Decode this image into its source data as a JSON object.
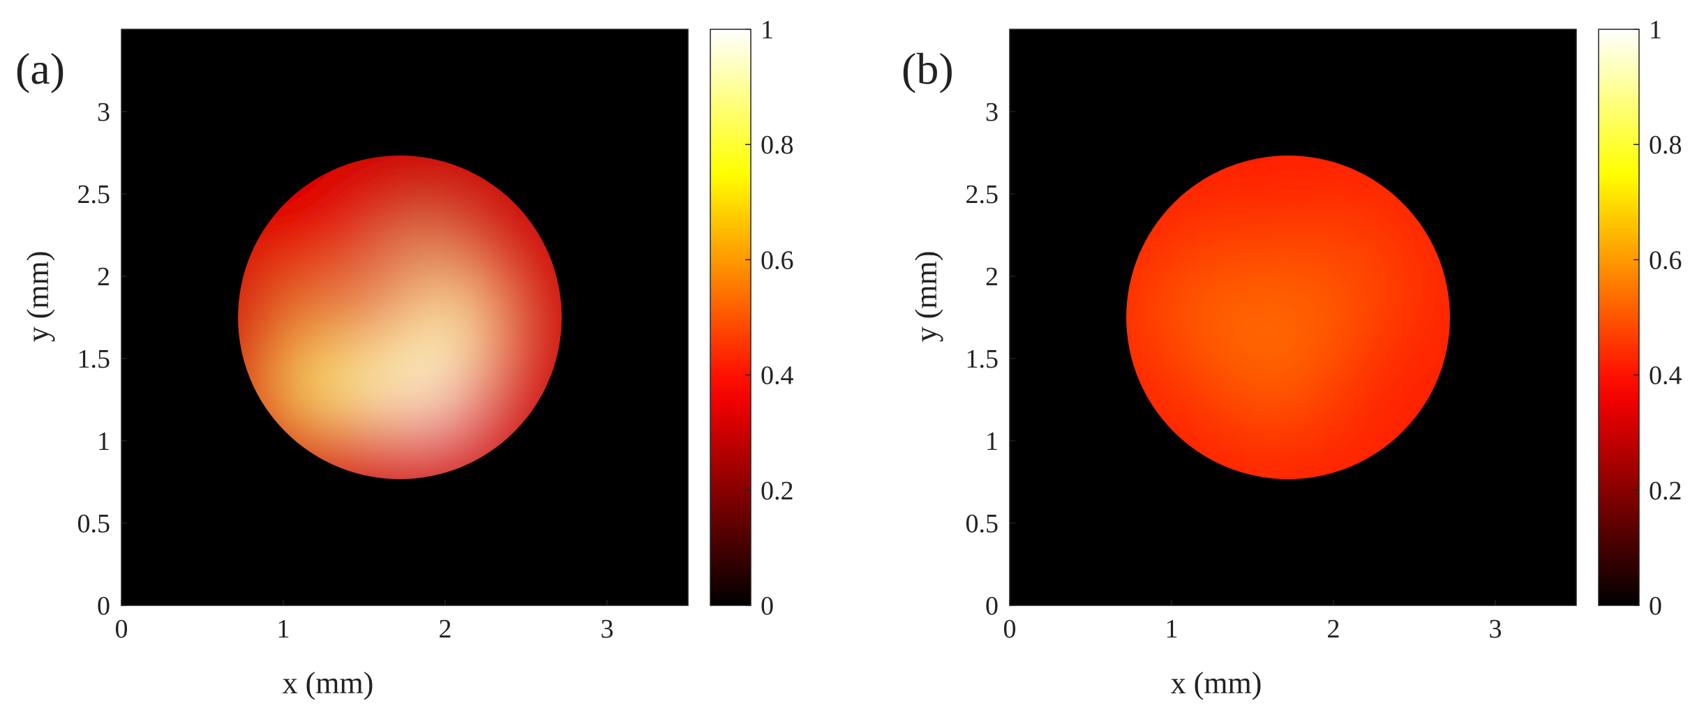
{
  "chart_data": [
    {
      "type": "heatmap",
      "panel_label": "(a)",
      "xlabel": "x (mm)",
      "ylabel": "y (mm)",
      "xlim": [
        0,
        3.5
      ],
      "ylim": [
        0,
        3.5
      ],
      "xticks": [
        0,
        1,
        2,
        3
      ],
      "yticks": [
        0,
        0.5,
        1,
        1.5,
        2,
        2.5,
        3
      ],
      "colormap": "hot",
      "colorbar": {
        "range": [
          0,
          1
        ],
        "ticks": [
          0,
          0.2,
          0.4,
          0.6,
          0.8,
          1
        ]
      },
      "background_value": 0,
      "disk": {
        "center": [
          1.72,
          1.75
        ],
        "radius": 1.0,
        "value_peaks": [
          {
            "x": 1.9,
            "y": 1.3,
            "value": 1.0
          },
          {
            "x": 2.05,
            "y": 1.75,
            "value": 0.92
          },
          {
            "x": 1.2,
            "y": 1.35,
            "value": 0.85
          },
          {
            "x": 1.7,
            "y": 2.55,
            "value": 0.3
          },
          {
            "x": 1.1,
            "y": 2.3,
            "value": 0.35
          }
        ],
        "min_value": 0.3,
        "max_value": 1.0
      }
    },
    {
      "type": "heatmap",
      "panel_label": "(b)",
      "xlabel": "x (mm)",
      "ylabel": "y (mm)",
      "xlim": [
        0,
        3.5
      ],
      "ylim": [
        0,
        3.5
      ],
      "xticks": [
        0,
        1,
        2,
        3
      ],
      "yticks": [
        0,
        0.5,
        1,
        1.5,
        2,
        2.5,
        3
      ],
      "colormap": "hot",
      "colorbar": {
        "range": [
          0,
          1
        ],
        "ticks": [
          0,
          0.2,
          0.4,
          0.6,
          0.8,
          1
        ]
      },
      "background_value": 0,
      "disk": {
        "center": [
          1.72,
          1.75
        ],
        "radius": 1.0,
        "value_peaks": [
          {
            "x": 1.6,
            "y": 1.65,
            "value": 0.58
          },
          {
            "x": 1.2,
            "y": 1.8,
            "value": 0.52
          },
          {
            "x": 2.1,
            "y": 1.95,
            "value": 0.5
          },
          {
            "x": 1.7,
            "y": 2.6,
            "value": 0.42
          },
          {
            "x": 1.7,
            "y": 0.9,
            "value": 0.43
          }
        ],
        "min_value": 0.42,
        "max_value": 0.58
      }
    }
  ]
}
